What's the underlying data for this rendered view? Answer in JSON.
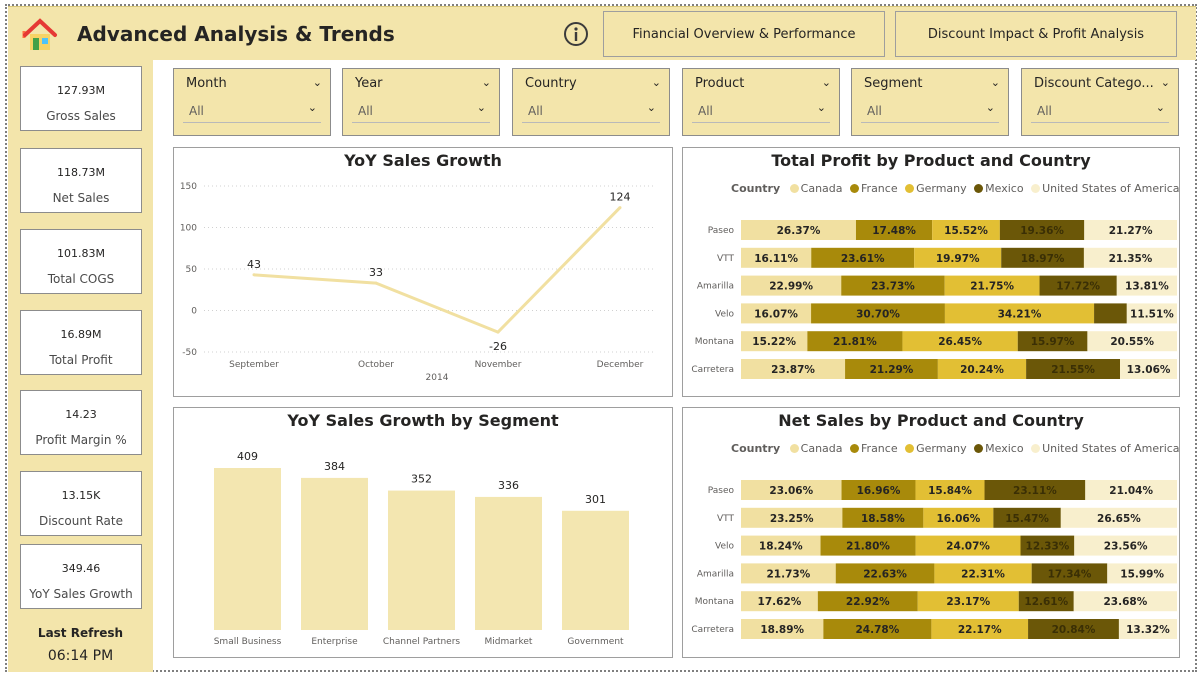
{
  "header": {
    "title": "Advanced Analysis & Trends",
    "home_icon": "home-icon",
    "info_icon": "info-icon",
    "nav_financial": "Financial Overview & Performance",
    "nav_discount": "Discount Impact & Profit Analysis"
  },
  "kpis": [
    {
      "value": "127.93M",
      "label": "Gross Sales"
    },
    {
      "value": "118.73M",
      "label": "Net Sales"
    },
    {
      "value": "101.83M",
      "label": "Total COGS"
    },
    {
      "value": "16.89M",
      "label": "Total Profit"
    },
    {
      "value": "14.23",
      "label": "Profit Margin %"
    },
    {
      "value": "13.15K",
      "label": "Discount Rate"
    },
    {
      "value": "349.46",
      "label": "YoY Sales Growth"
    }
  ],
  "refresh": {
    "label": "Last Refresh",
    "time": "06:14 PM"
  },
  "slicers": [
    {
      "title": "Month",
      "value": "All"
    },
    {
      "title": "Year",
      "value": "All"
    },
    {
      "title": "Country",
      "value": "All"
    },
    {
      "title": "Product",
      "value": "All"
    },
    {
      "title": "Segment",
      "value": "All"
    },
    {
      "title": "Discount Catego...",
      "value": "All"
    }
  ],
  "colors": {
    "accent": "#f3e5ab",
    "Canada": "#f1e0a1",
    "France": "#a88a0b",
    "Germany": "#e2bf34",
    "Mexico": "#6b5708",
    "United States of America": "#f8efcd"
  },
  "legend": {
    "title": "Country",
    "items": [
      "Canada",
      "France",
      "Germany",
      "Mexico",
      "United States of America"
    ]
  },
  "chart_data": [
    {
      "type": "line",
      "title": "YoY Sales Growth",
      "x": [
        "September",
        "October",
        "November",
        "December"
      ],
      "x_group": "2014",
      "values": [
        43,
        33,
        -26,
        124
      ],
      "yticks": [
        150,
        100,
        50,
        0,
        -50
      ],
      "ylim": [
        -50,
        150
      ],
      "color": "#f1e0a1"
    },
    {
      "type": "bar",
      "title": "YoY Sales Growth by Segment",
      "categories": [
        "Small Business",
        "Enterprise",
        "Channel Partners",
        "Midmarket",
        "Government"
      ],
      "values": [
        409,
        384,
        352,
        336,
        301
      ],
      "color": "#f3e6b0"
    },
    {
      "type": "bar",
      "stacked": "100%",
      "title": "Total Profit by Product and Country",
      "categories": [
        "Paseo",
        "VTT",
        "Amarilla",
        "Velo",
        "Montana",
        "Carretera"
      ],
      "series": [
        {
          "name": "Canada",
          "values": [
            26.37,
            16.11,
            22.99,
            16.07,
            15.22,
            23.87
          ]
        },
        {
          "name": "France",
          "values": [
            17.48,
            23.61,
            23.73,
            30.7,
            21.81,
            21.29
          ]
        },
        {
          "name": "Germany",
          "values": [
            15.52,
            19.97,
            21.75,
            34.21,
            26.45,
            20.24
          ]
        },
        {
          "name": "Mexico",
          "values": [
            19.36,
            18.97,
            17.72,
            7.51,
            15.97,
            21.55
          ]
        },
        {
          "name": "United States of America",
          "values": [
            21.27,
            21.35,
            13.81,
            11.51,
            20.55,
            13.06
          ]
        }
      ],
      "labels": [
        [
          "26.37%",
          "17.48%",
          "15.52%",
          "19.36%",
          "21.27%"
        ],
        [
          "16.11%",
          "23.61%",
          "19.97%",
          "18.97%",
          "21.35%"
        ],
        [
          "22.99%",
          "23.73%",
          "21.75%",
          "17.72%",
          "13.81%"
        ],
        [
          "16.07%",
          "30.70%",
          "34.21%",
          "",
          "11.51%"
        ],
        [
          "15.22%",
          "21.81%",
          "26.45%",
          "15.97%",
          "20.55%"
        ],
        [
          "23.87%",
          "21.29%",
          "20.24%",
          "21.55%",
          "13.06%"
        ]
      ]
    },
    {
      "type": "bar",
      "stacked": "100%",
      "title": "Net Sales by Product and Country",
      "categories": [
        "Paseo",
        "VTT",
        "Velo",
        "Amarilla",
        "Montana",
        "Carretera"
      ],
      "series": [
        {
          "name": "Canada",
          "values": [
            23.06,
            23.25,
            18.24,
            21.73,
            17.62,
            18.89
          ]
        },
        {
          "name": "France",
          "values": [
            16.96,
            18.58,
            21.8,
            22.63,
            22.92,
            24.78
          ]
        },
        {
          "name": "Germany",
          "values": [
            15.84,
            16.06,
            24.07,
            22.31,
            23.17,
            22.17
          ]
        },
        {
          "name": "Mexico",
          "values": [
            23.11,
            15.47,
            12.33,
            17.34,
            12.61,
            20.84
          ]
        },
        {
          "name": "United States of America",
          "values": [
            21.04,
            26.65,
            23.56,
            15.99,
            23.68,
            13.32
          ]
        }
      ],
      "labels": [
        [
          "23.06%",
          "16.96%",
          "15.84%",
          "23.11%",
          "21.04%"
        ],
        [
          "23.25%",
          "18.58%",
          "16.06%",
          "15.47%",
          "26.65%"
        ],
        [
          "18.24%",
          "21.80%",
          "24.07%",
          "12.33%",
          "23.56%"
        ],
        [
          "21.73%",
          "22.63%",
          "22.31%",
          "17.34%",
          "15.99%"
        ],
        [
          "17.62%",
          "22.92%",
          "23.17%",
          "12.61%",
          "23.68%"
        ],
        [
          "18.89%",
          "24.78%",
          "22.17%",
          "20.84%",
          "13.32%"
        ]
      ]
    }
  ]
}
